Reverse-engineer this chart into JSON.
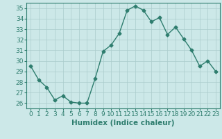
{
  "x": [
    0,
    1,
    2,
    3,
    4,
    5,
    6,
    7,
    8,
    9,
    10,
    11,
    12,
    13,
    14,
    15,
    16,
    17,
    18,
    19,
    20,
    21,
    22,
    23
  ],
  "y": [
    29.5,
    28.2,
    27.5,
    26.3,
    26.7,
    26.1,
    26.0,
    26.0,
    28.3,
    30.9,
    31.5,
    32.6,
    34.8,
    35.2,
    34.8,
    33.7,
    34.1,
    32.5,
    33.2,
    32.1,
    31.0,
    29.5,
    30.0,
    29.0
  ],
  "line_color": "#2e7d6e",
  "marker": "D",
  "marker_size": 2.5,
  "bg_color": "#cce8e8",
  "grid_color": "#aacccc",
  "xlabel": "Humidex (Indice chaleur)",
  "ylim": [
    25.5,
    35.5
  ],
  "xlim": [
    -0.5,
    23.5
  ],
  "yticks": [
    26,
    27,
    28,
    29,
    30,
    31,
    32,
    33,
    34,
    35
  ],
  "xtick_labels": [
    "0",
    "1",
    "2",
    "3",
    "4",
    "5",
    "6",
    "7",
    "8",
    "9",
    "10",
    "11",
    "12",
    "13",
    "14",
    "15",
    "16",
    "17",
    "18",
    "19",
    "20",
    "21",
    "22",
    "23"
  ],
  "axis_fontsize": 6.5,
  "xlabel_fontsize": 7.5,
  "linewidth": 1.0
}
